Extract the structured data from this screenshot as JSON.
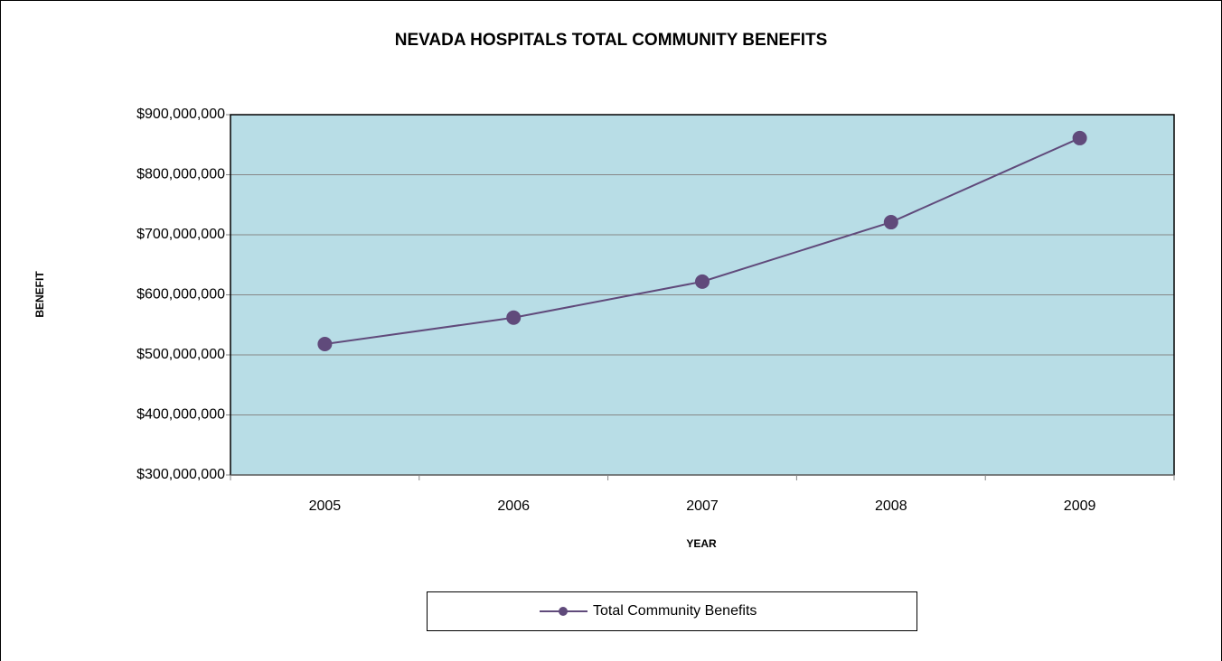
{
  "chart_data": {
    "type": "line",
    "title": "NEVADA HOSPITALS TOTAL COMMUNITY BENEFITS",
    "x_label": "YEAR",
    "y_label": "BENEFIT",
    "categories": [
      "2005",
      "2006",
      "2007",
      "2008",
      "2009"
    ],
    "series": [
      {
        "name": "Total Community Benefits",
        "color": "#604a7b",
        "values": [
          518000000,
          562000000,
          622000000,
          721000000,
          861000000
        ]
      }
    ],
    "ylim": [
      300000000,
      900000000
    ],
    "yticks": [
      {
        "value": 300000000,
        "label": "$300,000,000"
      },
      {
        "value": 400000000,
        "label": "$400,000,000"
      },
      {
        "value": 500000000,
        "label": "$500,000,000"
      },
      {
        "value": 600000000,
        "label": "$600,000,000"
      },
      {
        "value": 700000000,
        "label": "$700,000,000"
      },
      {
        "value": 800000000,
        "label": "$800,000,000"
      },
      {
        "value": 900000000,
        "label": "$900,000,000"
      }
    ],
    "grid": true,
    "plot_background": "#b8dde6",
    "legend": "bottom"
  }
}
